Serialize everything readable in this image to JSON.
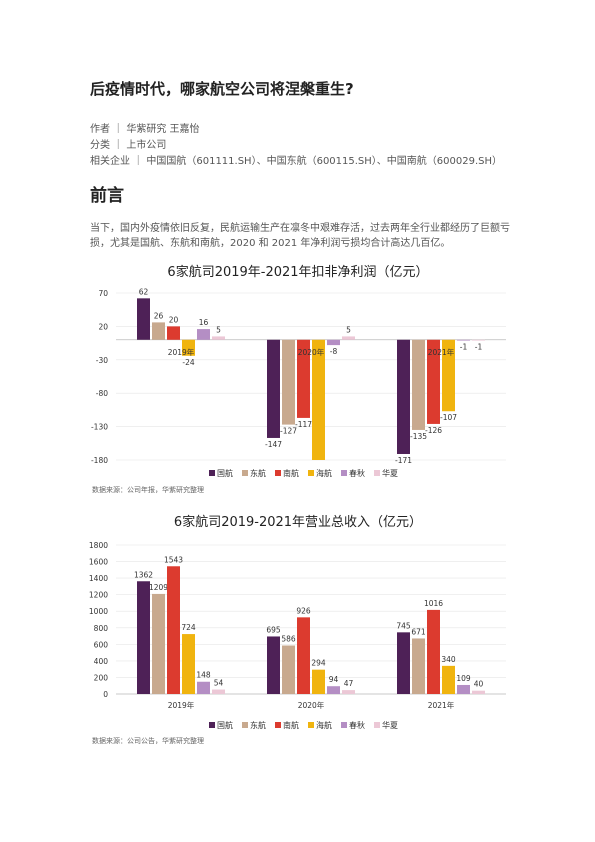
{
  "article": {
    "title": "后疫情时代，哪家航空公司将涅槃重生?",
    "author": "作者 ｜ 华紫研究 王嘉怡",
    "category": "分类 ｜ 上市公司",
    "related": "相关企业 ｜ 中国国航（601111.SH）、中国东航（600115.SH）、中国南航（600029.SH）",
    "section_heading": "前言",
    "intro": "当下，国内外疫情依旧反复，民航运输生产在凛冬中艰难存活，过去两年全行业都经历了巨额亏损，尤其是国航、东航和南航，2020 和 2021 年净利润亏损均合计高达几百亿。"
  },
  "colors": {
    "国航": "#4e2157",
    "东航": "#c8a98e",
    "南航": "#dc3b2f",
    "海航": "#f0b40f",
    "春秋": "#b48ec4",
    "华夏": "#ecc8d6"
  },
  "chart_data": [
    {
      "type": "bar",
      "title": "6家航司2019年-2021年扣非净利润（亿元）",
      "categories": [
        "2019年",
        "2020年",
        "2021年"
      ],
      "series": [
        {
          "name": "国航",
          "values": [
            62,
            -147,
            -171
          ]
        },
        {
          "name": "东航",
          "values": [
            26,
            -127,
            -135
          ]
        },
        {
          "name": "南航",
          "values": [
            20,
            -117,
            -126
          ]
        },
        {
          "name": "海航",
          "values": [
            -24,
            -180,
            -107
          ]
        },
        {
          "name": "春秋",
          "values": [
            16,
            -8,
            -1
          ]
        },
        {
          "name": "华夏",
          "values": [
            5,
            5,
            -1
          ]
        }
      ],
      "data_labels": [
        [
          "62",
          "-147",
          "-171"
        ],
        [
          "26",
          "-127",
          "-135"
        ],
        [
          "20",
          "-117",
          "-126"
        ],
        [
          "-24",
          "",
          "-107"
        ],
        [
          "16",
          "-8",
          "-1"
        ],
        [
          "5",
          "5",
          "-1"
        ]
      ],
      "yticks": [
        "70",
        "20",
        "-30",
        "-80",
        "-130",
        "-180"
      ],
      "ylim": [
        -180,
        70
      ],
      "category_label_position": "at-axis",
      "legend": "bottom",
      "source": "数据来源：公司年报，华紫研究整理"
    },
    {
      "type": "bar",
      "title": "6家航司2019-2021年营业总收入（亿元）",
      "categories": [
        "2019年",
        "2020年",
        "2021年"
      ],
      "series": [
        {
          "name": "国航",
          "values": [
            1362,
            695,
            745
          ]
        },
        {
          "name": "东航",
          "values": [
            1209,
            586,
            671
          ]
        },
        {
          "name": "南航",
          "values": [
            1543,
            926,
            1016
          ]
        },
        {
          "name": "海航",
          "values": [
            724,
            294,
            340
          ]
        },
        {
          "name": "春秋",
          "values": [
            148,
            94,
            109
          ]
        },
        {
          "name": "华夏",
          "values": [
            54,
            47,
            40
          ]
        }
      ],
      "data_labels": [
        [
          "1362",
          "695",
          "745"
        ],
        [
          "1209",
          "586",
          "671"
        ],
        [
          "1543",
          "926",
          "1016"
        ],
        [
          "724",
          "294",
          "340"
        ],
        [
          "148",
          "94",
          "109"
        ],
        [
          "54",
          "47",
          "40"
        ]
      ],
      "yticks": [
        "1800",
        "1600",
        "1400",
        "1200",
        "1000",
        "800",
        "600",
        "400",
        "200",
        "0"
      ],
      "ylim": [
        0,
        1800
      ],
      "category_label_position": "bottom",
      "legend": "bottom",
      "source": "数据来源：公司公告，华紫研究整理"
    }
  ]
}
